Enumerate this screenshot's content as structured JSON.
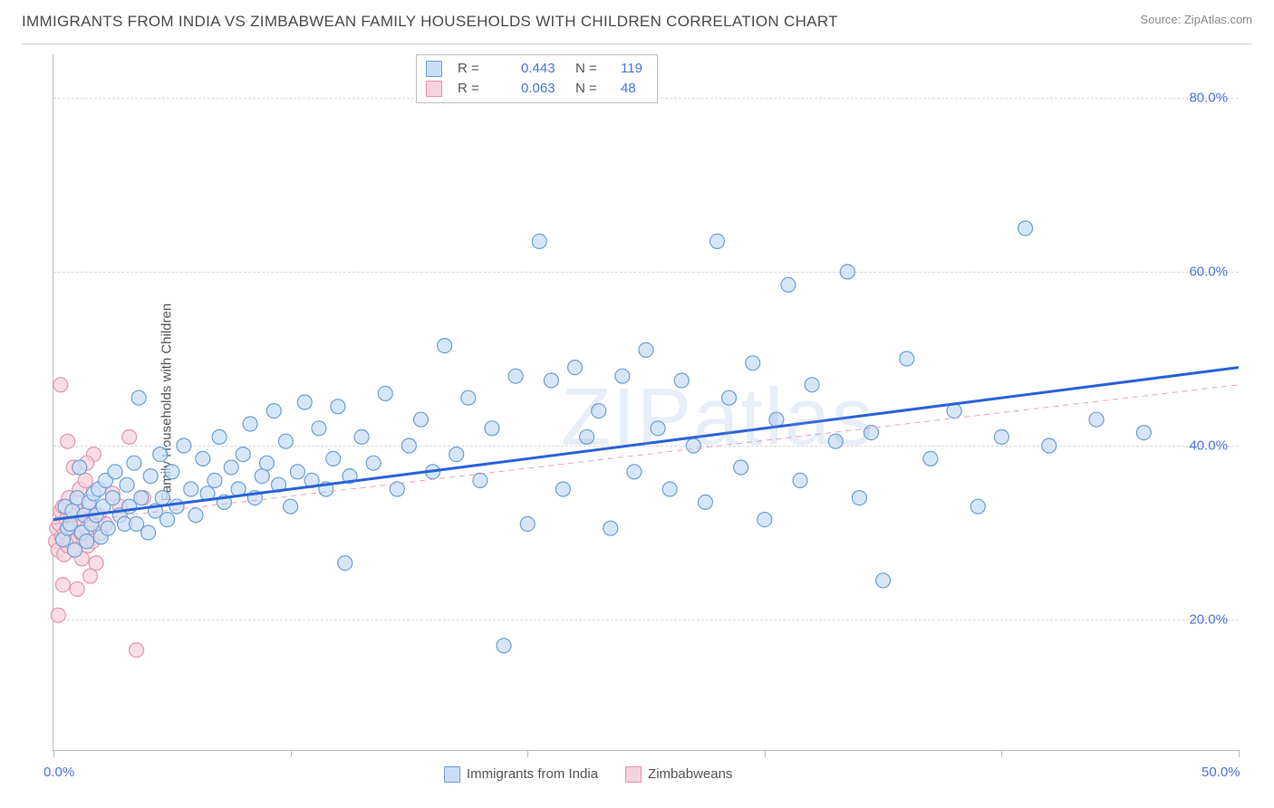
{
  "title": "IMMIGRANTS FROM INDIA VS ZIMBABWEAN FAMILY HOUSEHOLDS WITH CHILDREN CORRELATION CHART",
  "source": "Source: ZipAtlas.com",
  "ylabel": "Family Households with Children",
  "watermark": "ZIPatlas",
  "chart": {
    "type": "scatter",
    "background_color": "#ffffff",
    "grid_color": "#dadada",
    "axis_color": "#bcbcbc",
    "label_color": "#555555",
    "tick_color": "#4a74d8",
    "title_color": "#4a4a4a",
    "title_fontsize": 17,
    "label_fontsize": 15,
    "tick_fontsize": 15,
    "xlim": [
      0,
      50
    ],
    "ylim": [
      5,
      85
    ],
    "xticks": [
      0,
      10,
      20,
      30,
      40,
      50
    ],
    "xtick_labels": [
      "0.0%",
      "",
      "",
      "",
      "",
      "50.0%"
    ],
    "yticks": [
      20,
      40,
      60,
      80
    ],
    "ytick_labels": [
      "20.0%",
      "40.0%",
      "60.0%",
      "80.0%"
    ],
    "marker_radius": 8,
    "marker_stroke_width": 1.2,
    "trend_width_solid": 3,
    "trend_width_dashed": 1,
    "series": [
      {
        "name": "Immigrants from India",
        "fill": "#c9ddf4",
        "stroke": "#6b9fd8",
        "fill_opacity": 0.75,
        "r": "0.443",
        "n": "119",
        "trend": {
          "x0": 0,
          "y0": 31.5,
          "x1": 50,
          "y1": 49.0,
          "color": "#2a63d6",
          "dashed": false
        },
        "points": [
          [
            0.4,
            29.2
          ],
          [
            0.5,
            33.0
          ],
          [
            0.6,
            30.5
          ],
          [
            0.7,
            31.0
          ],
          [
            0.8,
            32.5
          ],
          [
            0.9,
            28.0
          ],
          [
            1.0,
            34.0
          ],
          [
            1.1,
            37.5
          ],
          [
            1.2,
            30.0
          ],
          [
            1.3,
            32.0
          ],
          [
            1.4,
            29.0
          ],
          [
            1.5,
            33.5
          ],
          [
            1.6,
            31.0
          ],
          [
            1.7,
            34.5
          ],
          [
            1.8,
            32.0
          ],
          [
            1.9,
            35.0
          ],
          [
            2.0,
            29.5
          ],
          [
            2.1,
            33.0
          ],
          [
            2.2,
            36.0
          ],
          [
            2.3,
            30.5
          ],
          [
            2.5,
            34.0
          ],
          [
            2.6,
            37.0
          ],
          [
            2.8,
            32.0
          ],
          [
            3.0,
            31.0
          ],
          [
            3.1,
            35.5
          ],
          [
            3.2,
            33.0
          ],
          [
            3.4,
            38.0
          ],
          [
            3.5,
            31.0
          ],
          [
            3.6,
            45.5
          ],
          [
            3.7,
            34.0
          ],
          [
            4.0,
            30.0
          ],
          [
            4.1,
            36.5
          ],
          [
            4.3,
            32.5
          ],
          [
            4.5,
            39.0
          ],
          [
            4.6,
            34.0
          ],
          [
            4.8,
            31.5
          ],
          [
            5.0,
            37.0
          ],
          [
            5.2,
            33.0
          ],
          [
            5.5,
            40.0
          ],
          [
            5.8,
            35.0
          ],
          [
            6.0,
            32.0
          ],
          [
            6.3,
            38.5
          ],
          [
            6.5,
            34.5
          ],
          [
            6.8,
            36.0
          ],
          [
            7.0,
            41.0
          ],
          [
            7.2,
            33.5
          ],
          [
            7.5,
            37.5
          ],
          [
            7.8,
            35.0
          ],
          [
            8.0,
            39.0
          ],
          [
            8.3,
            42.5
          ],
          [
            8.5,
            34.0
          ],
          [
            8.8,
            36.5
          ],
          [
            9.0,
            38.0
          ],
          [
            9.3,
            44.0
          ],
          [
            9.5,
            35.5
          ],
          [
            9.8,
            40.5
          ],
          [
            10.0,
            33.0
          ],
          [
            10.3,
            37.0
          ],
          [
            10.6,
            45.0
          ],
          [
            10.9,
            36.0
          ],
          [
            11.2,
            42.0
          ],
          [
            11.5,
            35.0
          ],
          [
            11.8,
            38.5
          ],
          [
            12.0,
            44.5
          ],
          [
            12.3,
            26.5
          ],
          [
            12.5,
            36.5
          ],
          [
            13.0,
            41.0
          ],
          [
            13.5,
            38.0
          ],
          [
            14.0,
            46.0
          ],
          [
            14.5,
            35.0
          ],
          [
            15.0,
            40.0
          ],
          [
            15.5,
            43.0
          ],
          [
            16.0,
            37.0
          ],
          [
            16.5,
            51.5
          ],
          [
            17.0,
            39.0
          ],
          [
            17.5,
            45.5
          ],
          [
            18.0,
            36.0
          ],
          [
            18.5,
            42.0
          ],
          [
            19.0,
            17.0
          ],
          [
            19.5,
            48.0
          ],
          [
            20.0,
            31.0
          ],
          [
            20.5,
            63.5
          ],
          [
            21.0,
            47.5
          ],
          [
            21.5,
            35.0
          ],
          [
            22.0,
            49.0
          ],
          [
            22.5,
            41.0
          ],
          [
            23.0,
            44.0
          ],
          [
            23.5,
            30.5
          ],
          [
            24.0,
            48.0
          ],
          [
            24.5,
            37.0
          ],
          [
            25.0,
            51.0
          ],
          [
            25.5,
            42.0
          ],
          [
            26.0,
            35.0
          ],
          [
            26.5,
            47.5
          ],
          [
            27.0,
            40.0
          ],
          [
            27.5,
            33.5
          ],
          [
            28.0,
            63.5
          ],
          [
            28.5,
            45.5
          ],
          [
            29.0,
            37.5
          ],
          [
            29.5,
            49.5
          ],
          [
            30.0,
            31.5
          ],
          [
            30.5,
            43.0
          ],
          [
            31.0,
            58.5
          ],
          [
            31.5,
            36.0
          ],
          [
            32.0,
            47.0
          ],
          [
            33.0,
            40.5
          ],
          [
            33.5,
            60.0
          ],
          [
            34.0,
            34.0
          ],
          [
            34.5,
            41.5
          ],
          [
            35.0,
            24.5
          ],
          [
            36.0,
            50.0
          ],
          [
            37.0,
            38.5
          ],
          [
            38.0,
            44.0
          ],
          [
            39.0,
            33.0
          ],
          [
            40.0,
            41.0
          ],
          [
            41.0,
            65.0
          ],
          [
            42.0,
            40.0
          ],
          [
            44.0,
            43.0
          ],
          [
            46.0,
            41.5
          ]
        ]
      },
      {
        "name": "Zimbabweans",
        "fill": "#f6d2dc",
        "stroke": "#e495ad",
        "fill_opacity": 0.75,
        "r": "0.063",
        "n": "48",
        "trend": {
          "x0": 0,
          "y0": 31.0,
          "x1": 50,
          "y1": 47.0,
          "color": "#e8a3b6",
          "dashed": true
        },
        "points": [
          [
            0.1,
            29.0
          ],
          [
            0.15,
            30.5
          ],
          [
            0.2,
            28.0
          ],
          [
            0.25,
            31.0
          ],
          [
            0.3,
            32.5
          ],
          [
            0.35,
            29.5
          ],
          [
            0.4,
            33.0
          ],
          [
            0.45,
            27.5
          ],
          [
            0.5,
            30.0
          ],
          [
            0.55,
            31.5
          ],
          [
            0.6,
            28.5
          ],
          [
            0.65,
            34.0
          ],
          [
            0.7,
            29.0
          ],
          [
            0.75,
            32.0
          ],
          [
            0.8,
            30.5
          ],
          [
            0.85,
            37.5
          ],
          [
            0.9,
            28.0
          ],
          [
            0.95,
            31.0
          ],
          [
            1.0,
            33.5
          ],
          [
            1.05,
            29.5
          ],
          [
            1.1,
            35.0
          ],
          [
            1.15,
            30.0
          ],
          [
            1.2,
            27.0
          ],
          [
            1.25,
            32.5
          ],
          [
            1.3,
            29.0
          ],
          [
            1.35,
            36.0
          ],
          [
            1.4,
            30.5
          ],
          [
            1.45,
            28.5
          ],
          [
            1.5,
            33.0
          ],
          [
            1.55,
            25.0
          ],
          [
            1.6,
            31.5
          ],
          [
            1.65,
            29.0
          ],
          [
            1.7,
            39.0
          ],
          [
            1.8,
            26.5
          ],
          [
            1.9,
            32.0
          ],
          [
            2.0,
            30.0
          ],
          [
            0.2,
            20.5
          ],
          [
            0.3,
            47.0
          ],
          [
            0.4,
            24.0
          ],
          [
            0.6,
            40.5
          ],
          [
            1.0,
            23.5
          ],
          [
            1.4,
            38.0
          ],
          [
            2.2,
            31.0
          ],
          [
            2.5,
            34.5
          ],
          [
            2.8,
            33.0
          ],
          [
            3.2,
            41.0
          ],
          [
            3.8,
            34.0
          ],
          [
            3.5,
            16.5
          ]
        ]
      }
    ]
  },
  "legend_top": {
    "r_label": "R =",
    "n_label": "N ="
  },
  "legend_bottom": [
    {
      "label": "Immigrants from India",
      "fill": "#c9ddf4",
      "stroke": "#6b9fd8"
    },
    {
      "label": "Zimbabweans",
      "fill": "#f6d2dc",
      "stroke": "#e495ad"
    }
  ]
}
